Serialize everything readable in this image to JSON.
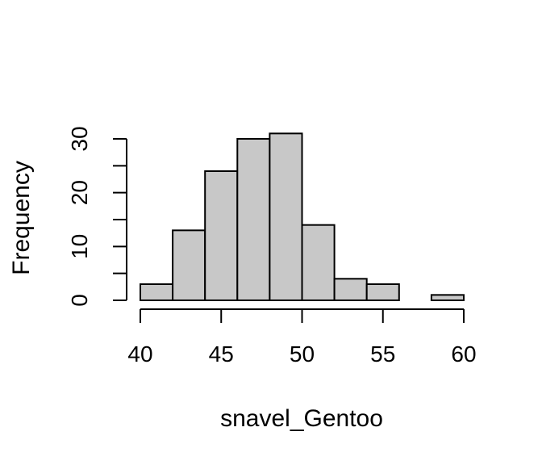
{
  "chart_data": {
    "type": "bar",
    "subtype": "histogram",
    "title": "",
    "xlabel": "snavel_Gentoo",
    "ylabel": "Frequency",
    "bin_edges": [
      40,
      42,
      44,
      46,
      48,
      50,
      52,
      54,
      56,
      58,
      60
    ],
    "values": [
      3,
      13,
      24,
      30,
      31,
      14,
      4,
      3,
      0,
      1
    ],
    "xlim": [
      40,
      60
    ],
    "ylim": [
      0,
      31
    ],
    "xticks": [
      40,
      45,
      50,
      55,
      60
    ],
    "yticks": [
      0,
      10,
      20,
      30
    ],
    "yminor_ticks": [
      5,
      15,
      25
    ],
    "grid": false,
    "legend": "none",
    "colors": {
      "bar_fill": "#c8c8c8",
      "bar_stroke": "#000000"
    }
  }
}
